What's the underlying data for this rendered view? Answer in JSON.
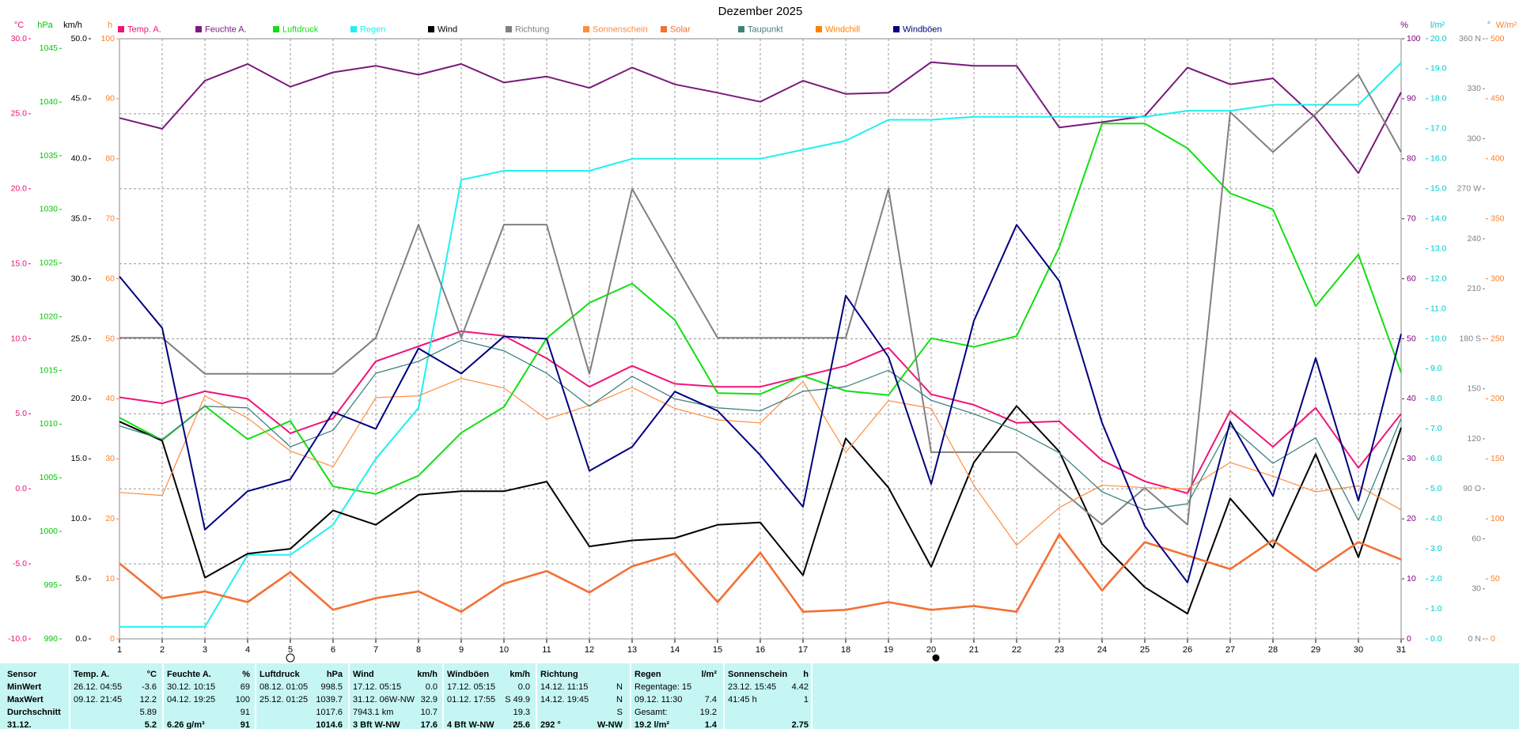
{
  "chart_data": {
    "type": "line",
    "title": "Dezember 2025",
    "x": [
      1,
      2,
      3,
      4,
      5,
      6,
      7,
      8,
      9,
      10,
      11,
      12,
      13,
      14,
      15,
      16,
      17,
      18,
      19,
      20,
      21,
      22,
      23,
      24,
      25,
      26,
      27,
      28,
      29,
      30,
      31
    ],
    "xlim": [
      1,
      31
    ],
    "xticks": [
      1,
      2,
      3,
      4,
      5,
      6,
      7,
      8,
      9,
      10,
      11,
      12,
      13,
      14,
      15,
      16,
      17,
      18,
      19,
      20,
      21,
      22,
      23,
      24,
      25,
      26,
      27,
      28,
      29,
      30,
      31
    ],
    "grid": true,
    "axes": [
      {
        "label": "°C",
        "color": "#e8107a",
        "lim": [
          -10,
          30
        ],
        "ticks": [
          {
            "value": -10,
            "label": "-10.0"
          },
          {
            "value": -5,
            "label": "-5.0"
          },
          {
            "value": 0,
            "label": "0.0"
          },
          {
            "value": 5,
            "label": "5.0"
          },
          {
            "value": 10,
            "label": "10.0"
          },
          {
            "value": 15,
            "label": "15.0"
          },
          {
            "value": 20,
            "label": "20.0"
          },
          {
            "value": 25,
            "label": "25.0"
          },
          {
            "value": 30,
            "label": "30.0"
          }
        ]
      },
      {
        "label": "hPa",
        "color": "#00c800",
        "lim": [
          990,
          1045.9
        ],
        "ticks": [
          990,
          995,
          1000,
          1005,
          1010,
          1015,
          1020,
          1025,
          1030,
          1035,
          1040,
          1045
        ]
      },
      {
        "label": "km/h",
        "color": "#000000",
        "lim": [
          0,
          50
        ],
        "ticks": [
          {
            "value": 0,
            "label": "0.0"
          },
          {
            "value": 5,
            "label": "5.0"
          },
          {
            "value": 10,
            "label": "10.0"
          },
          {
            "value": 15,
            "label": "15.0"
          },
          {
            "value": 20,
            "label": "20.0"
          },
          {
            "value": 25,
            "label": "25.0"
          },
          {
            "value": 30,
            "label": "30.0"
          },
          {
            "value": 35,
            "label": "35.0"
          },
          {
            "value": 40,
            "label": "40.0"
          },
          {
            "value": 45,
            "label": "45.0"
          },
          {
            "value": 50,
            "label": "50.0"
          }
        ]
      },
      {
        "label": "h",
        "color": "#ff7f27",
        "lim": [
          0,
          100
        ],
        "ticks": [
          0,
          10,
          20,
          30,
          40,
          50,
          60,
          70,
          80,
          90,
          100
        ]
      },
      {
        "label": "%",
        "color": "#800080",
        "lim": [
          0,
          100
        ],
        "ticks": [
          0,
          10,
          20,
          30,
          40,
          50,
          60,
          70,
          80,
          90,
          100
        ]
      },
      {
        "label": "l/m²",
        "color": "#00c8c8",
        "lim": [
          0,
          20
        ],
        "ticks": [
          {
            "value": 0,
            "label": "0.0"
          },
          {
            "value": 1,
            "label": "1.0"
          },
          {
            "value": 2,
            "label": "2.0"
          },
          {
            "value": 3,
            "label": "3.0"
          },
          {
            "value": 4,
            "label": "4.0"
          },
          {
            "value": 5,
            "label": "5.0"
          },
          {
            "value": 6,
            "label": "6.0"
          },
          {
            "value": 7,
            "label": "7.0"
          },
          {
            "value": 8,
            "label": "8.0"
          },
          {
            "value": 9,
            "label": "9.0"
          },
          {
            "value": 10,
            "label": "10.0"
          },
          {
            "value": 11,
            "label": "11.0"
          },
          {
            "value": 12,
            "label": "12.0"
          },
          {
            "value": 13,
            "label": "13.0"
          },
          {
            "value": 14,
            "label": "14.0"
          },
          {
            "value": 15,
            "label": "15.0"
          },
          {
            "value": 16,
            "label": "16.0"
          },
          {
            "value": 17,
            "label": "17.0"
          },
          {
            "value": 18,
            "label": "18.0"
          },
          {
            "value": 19,
            "label": "19.0"
          },
          {
            "value": 20,
            "label": "20.0"
          }
        ]
      },
      {
        "label": "°",
        "color": "#808080",
        "lim": [
          0,
          360
        ],
        "ticks": [
          {
            "value": 0,
            "label": "0 N"
          },
          30,
          60,
          {
            "value": 90,
            "label": "90 O"
          },
          120,
          150,
          {
            "value": 180,
            "label": "180 S"
          },
          210,
          240,
          {
            "value": 270,
            "label": "270 W"
          },
          300,
          330,
          {
            "value": 360,
            "label": "360 N"
          }
        ]
      },
      {
        "label": "W/m²",
        "color": "#ff7f27",
        "lim": [
          0,
          500
        ],
        "ticks": [
          0,
          50,
          100,
          150,
          200,
          250,
          300,
          350,
          400,
          450,
          500
        ]
      }
    ],
    "series": [
      {
        "name": "Temp. A.",
        "color": "#f0147a",
        "axis": 0,
        "values": [
          6.1,
          5.7,
          6.5,
          6.0,
          3.7,
          4.7,
          8.5,
          9.5,
          10.5,
          10.2,
          8.7,
          6.8,
          8.2,
          7.0,
          6.8,
          6.8,
          7.5,
          8.2,
          9.4,
          6.3,
          5.6,
          4.4,
          4.5,
          1.9,
          0.5,
          -0.3,
          5.2,
          2.8,
          5.4,
          1.4,
          5.0
        ]
      },
      {
        "name": "Feuchte A.",
        "color": "#7a1a7a",
        "axis": 4,
        "values": [
          86.8,
          85,
          93,
          95.8,
          92,
          94.4,
          95.5,
          94,
          95.8,
          92.7,
          93.7,
          91.8,
          95.2,
          92.4,
          91,
          89.5,
          93,
          90.8,
          91,
          96.1,
          95.5,
          95.5,
          85.2,
          86.1,
          87.1,
          95.2,
          92.4,
          93.4,
          86.8,
          77.6,
          91.1
        ]
      },
      {
        "name": "Luftdruck",
        "color": "#10e010",
        "axis": 1,
        "values": [
          1010.6,
          1008.5,
          1011.7,
          1008.6,
          1010.3,
          1004.2,
          1003.5,
          1005.2,
          1009.2,
          1011.6,
          1018,
          1021.3,
          1023.1,
          1019.7,
          1012.9,
          1012.8,
          1014.5,
          1013.1,
          1012.7,
          1018,
          1017.2,
          1018.2,
          1026.5,
          1038,
          1038,
          1035.7,
          1031.5,
          1030,
          1021,
          1025.8,
          1014.8
        ]
      },
      {
        "name": "Regen",
        "color": "#20f0f0",
        "axis": 5,
        "values": [
          0.4,
          0.4,
          0.4,
          2.8,
          2.8,
          3.8,
          6.0,
          7.7,
          15.3,
          15.6,
          15.6,
          15.6,
          16.0,
          16.0,
          16.0,
          16.0,
          16.3,
          16.6,
          17.3,
          17.3,
          17.4,
          17.4,
          17.4,
          17.4,
          17.4,
          17.6,
          17.6,
          17.8,
          17.8,
          17.8,
          19.2
        ]
      },
      {
        "name": "Wind",
        "color": "#000000",
        "axis": 2,
        "values": [
          18.1,
          16.5,
          5.1,
          7.1,
          7.5,
          10.7,
          9.5,
          12.0,
          12.3,
          12.3,
          13.1,
          7.7,
          8.2,
          8.4,
          9.5,
          9.7,
          5.3,
          16.7,
          12.6,
          6.0,
          14.7,
          19.4,
          15.6,
          7.9,
          4.3,
          2.1,
          11.7,
          7.6,
          15.4,
          6.8,
          17.6
        ]
      },
      {
        "name": "Richtung",
        "color": "#808080",
        "axis": 6,
        "values": [
          180.6,
          180.6,
          159,
          159,
          159,
          159,
          180.6,
          248.5,
          180.6,
          248.5,
          248.5,
          159,
          270,
          225,
          180.6,
          180.6,
          180.6,
          180.6,
          270,
          112,
          112,
          112,
          90,
          68.5,
          90.6,
          68.5,
          316,
          292,
          315,
          338.5,
          292
        ]
      },
      {
        "name": "Sonnenschein",
        "color": "#ff8c40",
        "axis": 3,
        "values": [
          24.4,
          23.9,
          40.5,
          36.8,
          31.3,
          28.7,
          40.2,
          40.5,
          43.4,
          41.8,
          36.6,
          38.9,
          41.9,
          38.4,
          36.5,
          36,
          42.9,
          31.1,
          39.7,
          38.4,
          25.6,
          15.6,
          21.9,
          25.6,
          25.2,
          25,
          29.4,
          27.1,
          24.5,
          25.5,
          21.5
        ]
      },
      {
        "name": "Solar",
        "color": "#f47034",
        "axis": 7,
        "values": [
          62.9,
          33.9,
          39.5,
          30.6,
          55.6,
          24.2,
          33.9,
          39.5,
          22.6,
          46,
          56.5,
          38.7,
          60.5,
          71,
          30.6,
          71.8,
          22.6,
          24.2,
          30.6,
          24.2,
          27.4,
          22.6,
          87.1,
          40.3,
          80.6,
          69.4,
          58.1,
          82.3,
          56.5,
          80.6,
          66.1
        ]
      },
      {
        "name": "Taupunkt",
        "color": "#408080",
        "axis": 0,
        "values": [
          4.2,
          3.3,
          5.5,
          5.4,
          2.8,
          3.9,
          7.7,
          8.5,
          9.9,
          9.2,
          7.7,
          5.5,
          7.5,
          6.0,
          5.4,
          5.2,
          6.5,
          6.8,
          7.9,
          5.9,
          5.0,
          3.9,
          2.4,
          -0.2,
          -1.4,
          -1.0,
          4.2,
          1.7,
          3.4,
          -2.1,
          4.7
        ]
      },
      {
        "name": "Windchill",
        "color": "#ff8000",
        "axis": 0,
        "values": [
          null,
          null,
          null,
          null,
          null,
          null,
          null,
          null,
          null,
          null,
          null,
          null,
          null,
          null,
          null,
          null,
          null,
          null,
          null,
          null,
          null,
          null,
          null,
          null,
          null,
          null,
          null,
          null,
          null,
          null,
          null
        ]
      },
      {
        "name": "Windböen",
        "color": "#000080",
        "axis": 2,
        "values": [
          30.2,
          25.9,
          9.1,
          12.3,
          13.3,
          18.9,
          17.5,
          24.2,
          22.1,
          25.2,
          25,
          14,
          16,
          20.6,
          19,
          15.3,
          11,
          28.6,
          23.5,
          12.9,
          26.5,
          34.5,
          29.8,
          18,
          9.4,
          4.7,
          18.1,
          11.9,
          23.4,
          11.5,
          25.4
        ]
      }
    ]
  },
  "table": {
    "header": [
      "Sensor",
      "Temp. A.",
      "°C",
      "Feuchte A.",
      "%",
      "Luftdruck",
      "hPa",
      "Wind",
      "km/h",
      "Windböen",
      "km/h",
      "Richtung",
      null,
      "Regen",
      "l/m²",
      "Sonnenschein",
      "h"
    ],
    "rows": [
      [
        "MinWert",
        "26.12.  04:55",
        "-3.6",
        "30.12.  10:15",
        "69",
        "08.12.  01:05",
        "998.5",
        "17.12.  05:15",
        "0.0",
        "17.12.  05:15",
        "0.0",
        "14.12.  11:15",
        "N",
        "Regentage: 15",
        null,
        "23.12.  15:45",
        "4.42"
      ],
      [
        "MaxWert",
        "09.12.  21:45",
        "12.2",
        "04.12.  19:25",
        "100",
        "25.12.  01:25",
        "1039.7",
        "31.12.  06W-NW",
        "32.9",
        "01.12.  17:55",
        "S  49.9",
        "14.12.  19:45",
        "N",
        "09.12.  11:30",
        "7.4",
        "41:45 h",
        "1"
      ],
      [
        "Durchschnitt",
        null,
        "5.89",
        null,
        "91",
        null,
        "1017.6",
        "7943.1 km",
        "10.7",
        null,
        "19.3",
        null,
        "S",
        "Gesamt:",
        "19.2",
        null,
        null
      ],
      [
        "31.12.",
        null,
        "5.2",
        "6.26 g/m³",
        "91",
        null,
        "1014.6",
        "3 Bft W-NW",
        "17.6",
        "4 Bft W-NW",
        "25.6",
        "292 °",
        "W-NW",
        "19.2 l/m²",
        "1.4",
        null,
        "2.75"
      ]
    ]
  }
}
